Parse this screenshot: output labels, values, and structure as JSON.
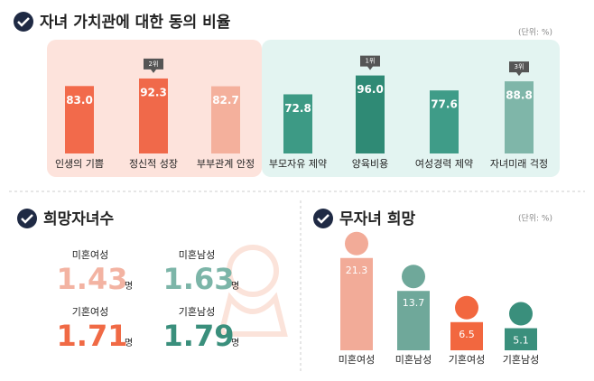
{
  "chart_data": [
    {
      "type": "bar",
      "title": "자녀 가치관에 대한 동의 비율",
      "unit_note": "(단위: %)",
      "categories": [
        "인생의 기쁨",
        "정신적 성장",
        "부부관계 안정",
        "부모자유 제약",
        "양육비용",
        "여성경력 제약",
        "자녀미래 걱정"
      ],
      "values": [
        83.0,
        92.3,
        82.7,
        72.8,
        96.0,
        77.6,
        88.8
      ],
      "value_labels": [
        "83.0",
        "92.3",
        "82.7",
        "72.8",
        "96.0",
        "77.6",
        "88.8"
      ],
      "colors": [
        "#f26a4b",
        "#f0694a",
        "#f4b09c",
        "#3d9a85",
        "#2f8a75",
        "#3f9c88",
        "#7fb6a9"
      ],
      "rank_badges": [
        null,
        "2위",
        null,
        null,
        "1위",
        null,
        "3위"
      ],
      "ylim": [
        0,
        100
      ]
    },
    {
      "type": "lollipop",
      "title": "무자녀 희망",
      "unit_note": "(단위: %)",
      "categories": [
        "미혼여성",
        "미혼남성",
        "기혼여성",
        "기혼남성"
      ],
      "values": [
        21.3,
        13.7,
        6.5,
        5.1
      ],
      "colors": [
        "#f2ab98",
        "#6fa89a",
        "#f2673f",
        "#3a8f7c"
      ],
      "ylim": [
        0,
        25
      ]
    }
  ],
  "desired_children": {
    "title": "희망자녀수",
    "unit": "명",
    "items": [
      {
        "label": "미혼여성",
        "value": 1.43,
        "color": "#f3b3a2"
      },
      {
        "label": "미혼남성",
        "value": 1.63,
        "color": "#7cb5a8"
      },
      {
        "label": "기혼여성",
        "value": 1.71,
        "color": "#f06a45"
      },
      {
        "label": "기혼남성",
        "value": 1.79,
        "color": "#3a8f7c"
      }
    ]
  }
}
